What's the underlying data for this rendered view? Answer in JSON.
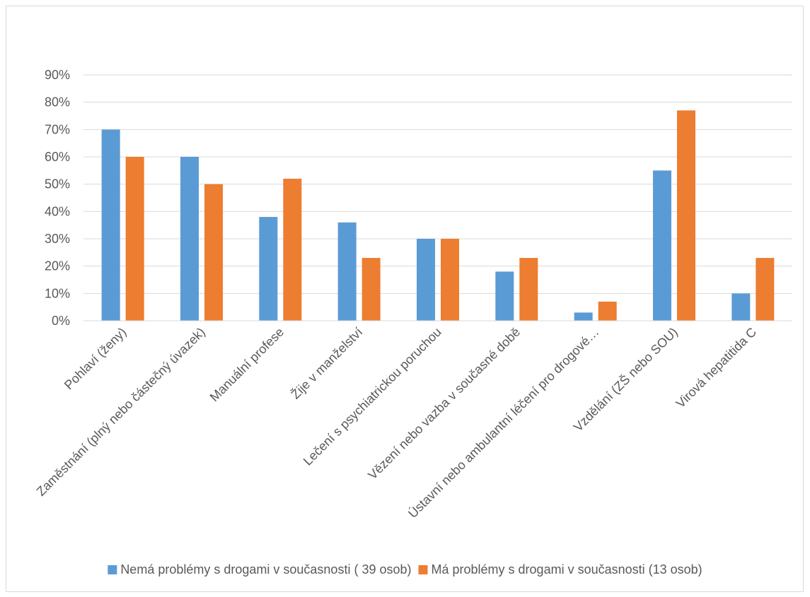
{
  "chart_data": {
    "type": "bar",
    "title": "",
    "xlabel": "",
    "ylabel": "",
    "ylim": [
      0,
      0.9
    ],
    "y_ticks": [
      "0%",
      "10%",
      "20%",
      "30%",
      "40%",
      "50%",
      "60%",
      "70%",
      "80%",
      "90%"
    ],
    "grid": true,
    "legend_position": "bottom",
    "categories": [
      "Pohlaví (ženy)",
      "Zaměstnání (plný nebo částečný úvazek)",
      "Manuální profese",
      "Žije v manželství",
      "Lečení s psychiatrickou poruchou",
      "Vězení nebo vazba v současné době",
      "Ústavní nebo ambulantní léčení pro drogové…",
      "Vzdělání (ZŠ nebo SOU)",
      "Virová hepatitida C"
    ],
    "series": [
      {
        "name": "Nemá problémy s drogami v současnosti ( 39 osob)",
        "color": "#5b9bd5",
        "values": [
          0.7,
          0.6,
          0.38,
          0.36,
          0.3,
          0.18,
          0.03,
          0.55,
          0.1
        ]
      },
      {
        "name": "Má problémy s drogami v současnosti (13 osob)",
        "color": "#ed7d31",
        "values": [
          0.6,
          0.5,
          0.52,
          0.23,
          0.3,
          0.23,
          0.07,
          0.77,
          0.23
        ]
      }
    ]
  }
}
